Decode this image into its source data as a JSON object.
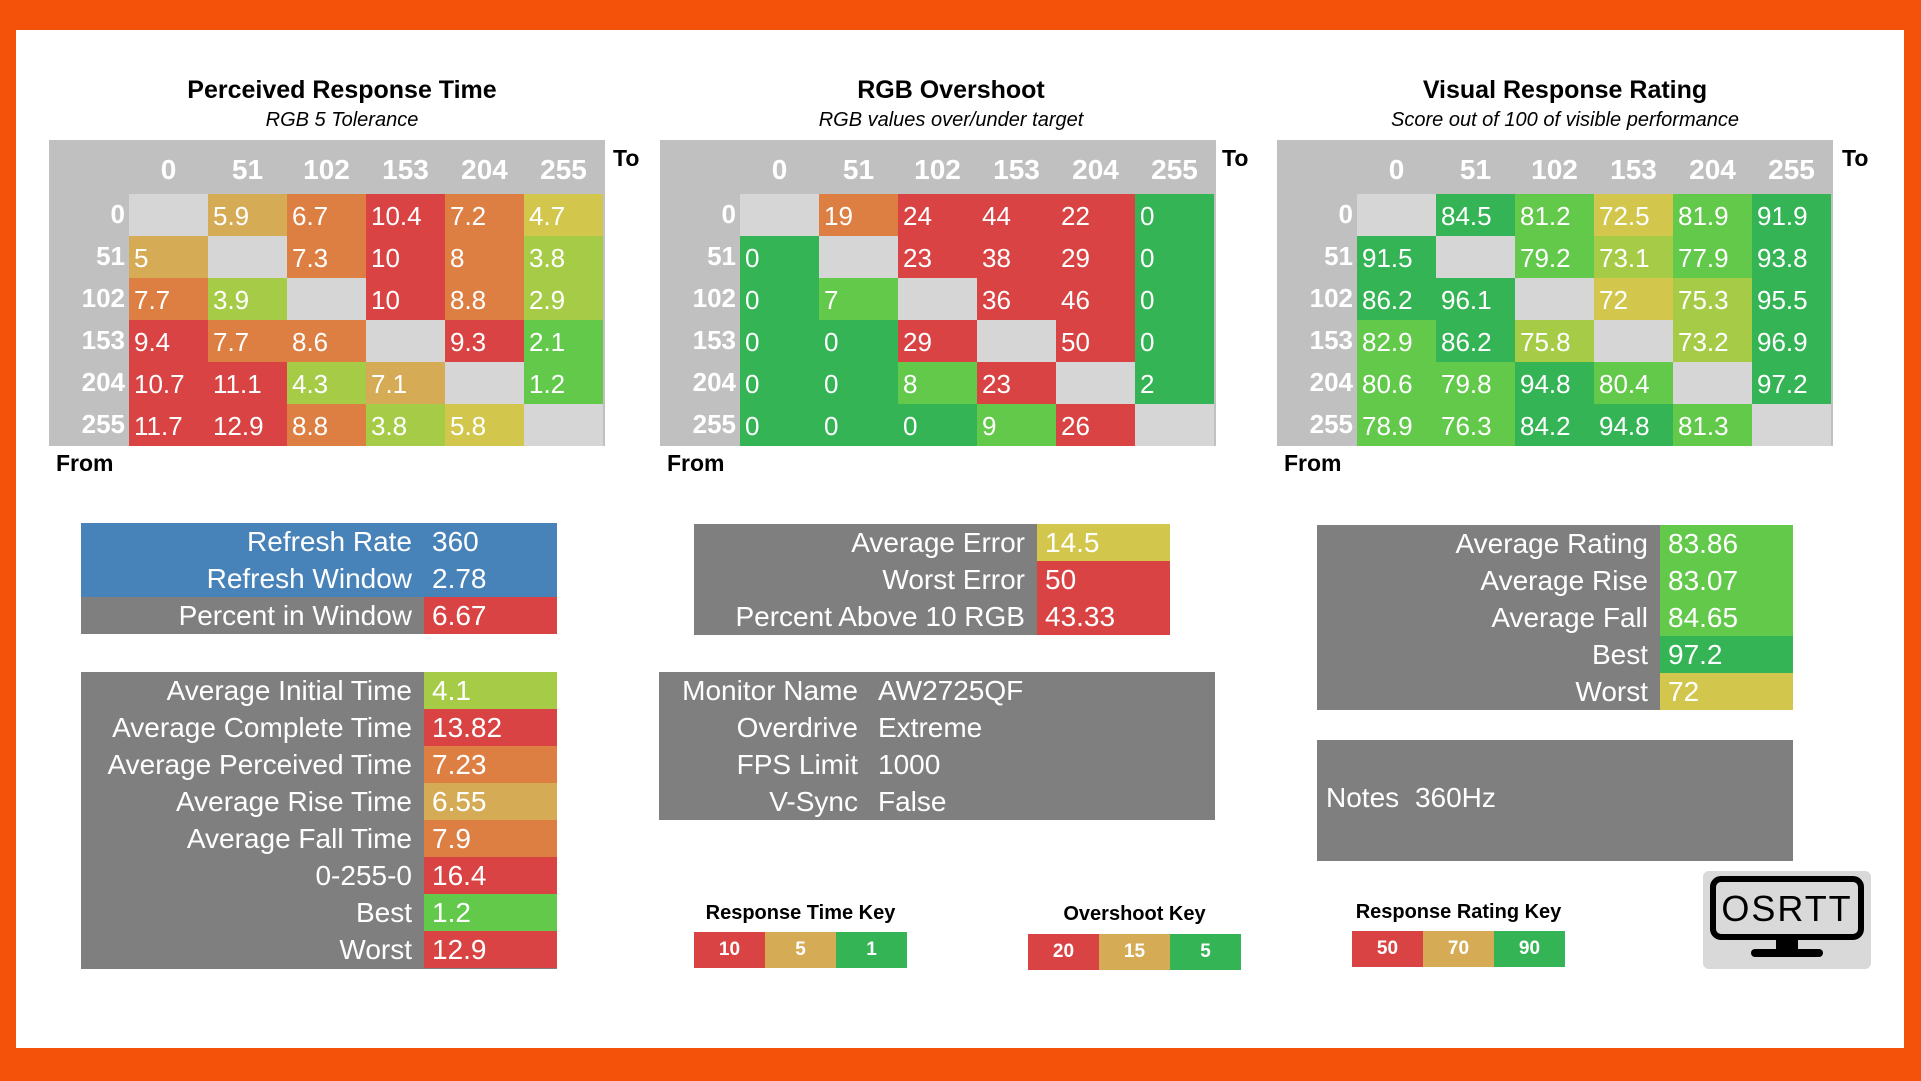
{
  "colors": {
    "red": "#d94343",
    "orange": "#dd7f43",
    "amber": "#d6ab55",
    "yellow": "#d2c64c",
    "ygreen": "#a6cc47",
    "lgreen": "#62c94a",
    "green": "#34b455",
    "blue": "#4782b9",
    "gray": "#7f7f7f",
    "empty": "#d6d6d6",
    "border": "#f4520a"
  },
  "matrix_headers": [
    "0",
    "51",
    "102",
    "153",
    "204",
    "255"
  ],
  "to_label": "To",
  "from_label": "From",
  "perceived": {
    "title": "Perceived Response Time",
    "subtitle": "RGB 5 Tolerance",
    "rows": [
      [
        {
          "v": "",
          "c": "empty"
        },
        {
          "v": "5.9",
          "c": "amber"
        },
        {
          "v": "6.7",
          "c": "orange"
        },
        {
          "v": "10.4",
          "c": "red"
        },
        {
          "v": "7.2",
          "c": "orange"
        },
        {
          "v": "4.7",
          "c": "yellow"
        }
      ],
      [
        {
          "v": "5",
          "c": "amber"
        },
        {
          "v": "",
          "c": "empty"
        },
        {
          "v": "7.3",
          "c": "orange"
        },
        {
          "v": "10",
          "c": "red"
        },
        {
          "v": "8",
          "c": "orange"
        },
        {
          "v": "3.8",
          "c": "ygreen"
        }
      ],
      [
        {
          "v": "7.7",
          "c": "orange"
        },
        {
          "v": "3.9",
          "c": "ygreen"
        },
        {
          "v": "",
          "c": "empty"
        },
        {
          "v": "10",
          "c": "red"
        },
        {
          "v": "8.8",
          "c": "orange"
        },
        {
          "v": "2.9",
          "c": "ygreen"
        }
      ],
      [
        {
          "v": "9.4",
          "c": "red"
        },
        {
          "v": "7.7",
          "c": "orange"
        },
        {
          "v": "8.6",
          "c": "orange"
        },
        {
          "v": "",
          "c": "empty"
        },
        {
          "v": "9.3",
          "c": "red"
        },
        {
          "v": "2.1",
          "c": "lgreen"
        }
      ],
      [
        {
          "v": "10.7",
          "c": "red"
        },
        {
          "v": "11.1",
          "c": "red"
        },
        {
          "v": "4.3",
          "c": "ygreen"
        },
        {
          "v": "7.1",
          "c": "amber"
        },
        {
          "v": "",
          "c": "empty"
        },
        {
          "v": "1.2",
          "c": "lgreen"
        }
      ],
      [
        {
          "v": "11.7",
          "c": "red"
        },
        {
          "v": "12.9",
          "c": "red"
        },
        {
          "v": "8.8",
          "c": "orange"
        },
        {
          "v": "3.8",
          "c": "ygreen"
        },
        {
          "v": "5.8",
          "c": "yellow"
        },
        {
          "v": "",
          "c": "empty"
        }
      ]
    ]
  },
  "overshoot": {
    "title": "RGB Overshoot",
    "subtitle": "RGB values over/under target",
    "rows": [
      [
        {
          "v": "",
          "c": "empty"
        },
        {
          "v": "19",
          "c": "orange"
        },
        {
          "v": "24",
          "c": "red"
        },
        {
          "v": "44",
          "c": "red"
        },
        {
          "v": "22",
          "c": "red"
        },
        {
          "v": "0",
          "c": "green"
        }
      ],
      [
        {
          "v": "0",
          "c": "green"
        },
        {
          "v": "",
          "c": "empty"
        },
        {
          "v": "23",
          "c": "red"
        },
        {
          "v": "38",
          "c": "red"
        },
        {
          "v": "29",
          "c": "red"
        },
        {
          "v": "0",
          "c": "green"
        }
      ],
      [
        {
          "v": "0",
          "c": "green"
        },
        {
          "v": "7",
          "c": "lgreen"
        },
        {
          "v": "",
          "c": "empty"
        },
        {
          "v": "36",
          "c": "red"
        },
        {
          "v": "46",
          "c": "red"
        },
        {
          "v": "0",
          "c": "green"
        }
      ],
      [
        {
          "v": "0",
          "c": "green"
        },
        {
          "v": "0",
          "c": "green"
        },
        {
          "v": "29",
          "c": "red"
        },
        {
          "v": "",
          "c": "empty"
        },
        {
          "v": "50",
          "c": "red"
        },
        {
          "v": "0",
          "c": "green"
        }
      ],
      [
        {
          "v": "0",
          "c": "green"
        },
        {
          "v": "0",
          "c": "green"
        },
        {
          "v": "8",
          "c": "lgreen"
        },
        {
          "v": "23",
          "c": "red"
        },
        {
          "v": "",
          "c": "empty"
        },
        {
          "v": "2",
          "c": "green"
        }
      ],
      [
        {
          "v": "0",
          "c": "green"
        },
        {
          "v": "0",
          "c": "green"
        },
        {
          "v": "0",
          "c": "green"
        },
        {
          "v": "9",
          "c": "lgreen"
        },
        {
          "v": "26",
          "c": "red"
        },
        {
          "v": "",
          "c": "empty"
        }
      ]
    ]
  },
  "visual": {
    "title": "Visual Response Rating",
    "subtitle": "Score out of 100 of visible performance",
    "rows": [
      [
        {
          "v": "",
          "c": "empty"
        },
        {
          "v": "84.5",
          "c": "green"
        },
        {
          "v": "81.2",
          "c": "lgreen"
        },
        {
          "v": "72.5",
          "c": "yellow"
        },
        {
          "v": "81.9",
          "c": "lgreen"
        },
        {
          "v": "91.9",
          "c": "green"
        }
      ],
      [
        {
          "v": "91.5",
          "c": "green"
        },
        {
          "v": "",
          "c": "empty"
        },
        {
          "v": "79.2",
          "c": "lgreen"
        },
        {
          "v": "73.1",
          "c": "ygreen"
        },
        {
          "v": "77.9",
          "c": "lgreen"
        },
        {
          "v": "93.8",
          "c": "green"
        }
      ],
      [
        {
          "v": "86.2",
          "c": "green"
        },
        {
          "v": "96.1",
          "c": "green"
        },
        {
          "v": "",
          "c": "empty"
        },
        {
          "v": "72",
          "c": "yellow"
        },
        {
          "v": "75.3",
          "c": "ygreen"
        },
        {
          "v": "95.5",
          "c": "green"
        }
      ],
      [
        {
          "v": "82.9",
          "c": "lgreen"
        },
        {
          "v": "86.2",
          "c": "green"
        },
        {
          "v": "75.8",
          "c": "ygreen"
        },
        {
          "v": "",
          "c": "empty"
        },
        {
          "v": "73.2",
          "c": "ygreen"
        },
        {
          "v": "96.9",
          "c": "green"
        }
      ],
      [
        {
          "v": "80.6",
          "c": "lgreen"
        },
        {
          "v": "79.8",
          "c": "lgreen"
        },
        {
          "v": "94.8",
          "c": "green"
        },
        {
          "v": "80.4",
          "c": "lgreen"
        },
        {
          "v": "",
          "c": "empty"
        },
        {
          "v": "97.2",
          "c": "green"
        }
      ],
      [
        {
          "v": "78.9",
          "c": "lgreen"
        },
        {
          "v": "76.3",
          "c": "lgreen"
        },
        {
          "v": "84.2",
          "c": "green"
        },
        {
          "v": "94.8",
          "c": "green"
        },
        {
          "v": "81.3",
          "c": "lgreen"
        },
        {
          "v": "",
          "c": "empty"
        }
      ]
    ]
  },
  "refresh_box": [
    {
      "label": "Refresh Rate",
      "value": "360",
      "lc": "blue",
      "vc": "blue"
    },
    {
      "label": "Refresh Window",
      "value": "2.78",
      "lc": "blue",
      "vc": "blue"
    },
    {
      "label": "Percent in Window",
      "value": "6.67",
      "lc": "gray",
      "vc": "red"
    }
  ],
  "time_box": [
    {
      "label": "Average Initial Time",
      "value": "4.1",
      "vc": "ygreen"
    },
    {
      "label": "Average Complete Time",
      "value": "13.82",
      "vc": "red"
    },
    {
      "label": "Average Perceived Time",
      "value": "7.23",
      "vc": "orange"
    },
    {
      "label": "Average Rise Time",
      "value": "6.55",
      "vc": "amber"
    },
    {
      "label": "Average Fall Time",
      "value": "7.9",
      "vc": "orange"
    },
    {
      "label": "0-255-0",
      "value": "16.4",
      "vc": "red"
    },
    {
      "label": "Best",
      "value": "1.2",
      "vc": "lgreen"
    },
    {
      "label": "Worst",
      "value": "12.9",
      "vc": "red"
    }
  ],
  "error_box": [
    {
      "label": "Average Error",
      "value": "14.5",
      "vc": "yellow"
    },
    {
      "label": "Worst Error",
      "value": "50",
      "vc": "red"
    },
    {
      "label": "Percent Above 10 RGB",
      "value": "43.33",
      "vc": "red"
    }
  ],
  "monitor_box": [
    {
      "label": "Monitor Name",
      "value": "AW2725QF"
    },
    {
      "label": "Overdrive",
      "value": "Extreme"
    },
    {
      "label": "FPS Limit",
      "value": "1000"
    },
    {
      "label": "V-Sync",
      "value": "False"
    }
  ],
  "rating_box": [
    {
      "label": "Average Rating",
      "value": "83.86",
      "vc": "lgreen"
    },
    {
      "label": "Average Rise",
      "value": "83.07",
      "vc": "lgreen"
    },
    {
      "label": "Average Fall",
      "value": "84.65",
      "vc": "lgreen"
    },
    {
      "label": "Best",
      "value": "97.2",
      "vc": "green"
    },
    {
      "label": "Worst",
      "value": "72",
      "vc": "yellow"
    }
  ],
  "notes": {
    "label": "Notes",
    "value": "360Hz"
  },
  "keys": [
    {
      "title": "Response Time Key",
      "cells": [
        {
          "v": "10",
          "c": "red"
        },
        {
          "v": "5",
          "c": "amber"
        },
        {
          "v": "1",
          "c": "green"
        }
      ]
    },
    {
      "title": "Overshoot Key",
      "cells": [
        {
          "v": "20",
          "c": "red"
        },
        {
          "v": "15",
          "c": "amber"
        },
        {
          "v": "5",
          "c": "green"
        }
      ]
    },
    {
      "title": "Response Rating Key",
      "cells": [
        {
          "v": "50",
          "c": "red"
        },
        {
          "v": "70",
          "c": "amber"
        },
        {
          "v": "90",
          "c": "green"
        }
      ]
    }
  ],
  "logo": {
    "text": "OSRTT",
    "icon": "monitor-icon"
  }
}
